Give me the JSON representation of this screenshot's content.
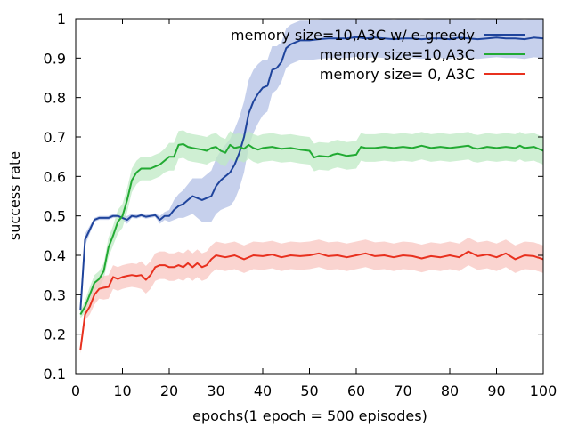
{
  "chart_data": {
    "type": "line",
    "title": "",
    "xlabel": "epochs(1 epoch = 500 episodes)",
    "ylabel": "success rate",
    "xlim": [
      0,
      100
    ],
    "ylim": [
      0.1,
      1.0
    ],
    "xticks": [
      0,
      10,
      20,
      30,
      40,
      50,
      60,
      70,
      80,
      90,
      100
    ],
    "yticks": [
      0.1,
      0.2,
      0.3,
      0.4,
      0.5,
      0.6,
      0.7,
      0.8,
      0.9,
      1.0
    ],
    "xtick_labels": [
      "0",
      "10",
      "20",
      "30",
      "40",
      "50",
      "60",
      "70",
      "80",
      "90",
      "100"
    ],
    "ytick_labels": [
      "0.1",
      "0.2",
      "0.3",
      "0.4",
      "0.5",
      "0.6",
      "0.7",
      "0.8",
      "0.9",
      "1"
    ],
    "grid": false,
    "legend_position": "top-right",
    "series": [
      {
        "name": "memory size=10,A3C w/ e-greedy",
        "color": "#1f449c",
        "band_color": "#b3c0e6",
        "x": [
          1,
          2,
          3,
          4,
          5,
          6,
          7,
          8,
          9,
          10,
          11,
          12,
          13,
          14,
          15,
          16,
          17,
          18,
          19,
          20,
          21,
          22,
          23,
          24,
          25,
          26,
          27,
          28,
          29,
          30,
          31,
          32,
          33,
          34,
          35,
          36,
          37,
          38,
          39,
          40,
          41,
          42,
          43,
          44,
          45,
          46,
          47,
          48,
          49,
          50,
          52,
          54,
          56,
          58,
          60,
          62,
          64,
          66,
          68,
          70,
          72,
          74,
          76,
          78,
          80,
          82,
          84,
          86,
          88,
          90,
          92,
          94,
          96,
          98,
          100
        ],
        "y": [
          0.26,
          0.44,
          0.465,
          0.49,
          0.495,
          0.495,
          0.495,
          0.5,
          0.5,
          0.495,
          0.49,
          0.5,
          0.498,
          0.502,
          0.498,
          0.5,
          0.502,
          0.49,
          0.5,
          0.5,
          0.515,
          0.525,
          0.53,
          0.54,
          0.55,
          0.545,
          0.54,
          0.545,
          0.55,
          0.575,
          0.59,
          0.6,
          0.61,
          0.63,
          0.66,
          0.7,
          0.76,
          0.79,
          0.81,
          0.825,
          0.83,
          0.87,
          0.875,
          0.89,
          0.925,
          0.935,
          0.94,
          0.945,
          0.945,
          0.945,
          0.948,
          0.95,
          0.95,
          0.95,
          0.953,
          0.95,
          0.952,
          0.95,
          0.948,
          0.95,
          0.95,
          0.948,
          0.95,
          0.95,
          0.948,
          0.952,
          0.95,
          0.948,
          0.95,
          0.952,
          0.95,
          0.95,
          0.948,
          0.952,
          0.95
        ],
        "band": [
          0.01,
          0.015,
          0.01,
          0.005,
          0.005,
          0.005,
          0.005,
          0.005,
          0.005,
          0.005,
          0.01,
          0.005,
          0.005,
          0.005,
          0.005,
          0.005,
          0.005,
          0.01,
          0.01,
          0.015,
          0.025,
          0.03,
          0.035,
          0.04,
          0.045,
          0.05,
          0.055,
          0.06,
          0.065,
          0.07,
          0.075,
          0.08,
          0.085,
          0.09,
          0.09,
          0.09,
          0.085,
          0.08,
          0.075,
          0.07,
          0.065,
          0.06,
          0.055,
          0.05,
          0.05,
          0.05,
          0.05,
          0.05,
          0.05,
          0.05,
          0.05,
          0.05,
          0.05,
          0.05,
          0.05,
          0.05,
          0.05,
          0.05,
          0.05,
          0.05,
          0.05,
          0.05,
          0.05,
          0.05,
          0.05,
          0.05,
          0.05,
          0.05,
          0.05,
          0.05,
          0.05,
          0.05,
          0.05,
          0.05,
          0.05
        ]
      },
      {
        "name": "memory size=10,A3C",
        "color": "#22aa33",
        "band_color": "#bfe9c4",
        "x": [
          1,
          2,
          3,
          4,
          5,
          6,
          7,
          8,
          9,
          10,
          11,
          12,
          13,
          14,
          15,
          16,
          17,
          18,
          19,
          20,
          21,
          22,
          23,
          24,
          25,
          26,
          27,
          28,
          29,
          30,
          31,
          32,
          33,
          34,
          35,
          36,
          37,
          38,
          39,
          40,
          42,
          44,
          46,
          48,
          50,
          51,
          52,
          54,
          55,
          56,
          58,
          60,
          61,
          62,
          64,
          66,
          68,
          70,
          72,
          74,
          76,
          78,
          80,
          82,
          84,
          85,
          86,
          88,
          90,
          92,
          94,
          95,
          96,
          98,
          100
        ],
        "y": [
          0.25,
          0.27,
          0.3,
          0.33,
          0.34,
          0.36,
          0.42,
          0.45,
          0.485,
          0.5,
          0.54,
          0.59,
          0.61,
          0.62,
          0.62,
          0.62,
          0.625,
          0.63,
          0.64,
          0.65,
          0.65,
          0.68,
          0.682,
          0.675,
          0.672,
          0.67,
          0.668,
          0.665,
          0.672,
          0.675,
          0.665,
          0.66,
          0.68,
          0.672,
          0.675,
          0.67,
          0.68,
          0.672,
          0.668,
          0.672,
          0.675,
          0.67,
          0.672,
          0.668,
          0.665,
          0.648,
          0.652,
          0.65,
          0.655,
          0.658,
          0.652,
          0.655,
          0.675,
          0.672,
          0.672,
          0.675,
          0.672,
          0.675,
          0.672,
          0.678,
          0.672,
          0.675,
          0.672,
          0.675,
          0.678,
          0.672,
          0.67,
          0.675,
          0.672,
          0.675,
          0.672,
          0.678,
          0.672,
          0.675,
          0.665
        ],
        "band": [
          0.01,
          0.015,
          0.02,
          0.02,
          0.02,
          0.02,
          0.025,
          0.025,
          0.03,
          0.03,
          0.03,
          0.03,
          0.03,
          0.03,
          0.03,
          0.03,
          0.03,
          0.03,
          0.03,
          0.035,
          0.035,
          0.035,
          0.035,
          0.035,
          0.035,
          0.035,
          0.035,
          0.035,
          0.035,
          0.035,
          0.035,
          0.035,
          0.035,
          0.035,
          0.035,
          0.035,
          0.035,
          0.035,
          0.035,
          0.035,
          0.035,
          0.035,
          0.035,
          0.035,
          0.035,
          0.035,
          0.035,
          0.035,
          0.035,
          0.035,
          0.035,
          0.035,
          0.035,
          0.035,
          0.035,
          0.035,
          0.035,
          0.035,
          0.035,
          0.035,
          0.035,
          0.035,
          0.035,
          0.035,
          0.035,
          0.035,
          0.035,
          0.035,
          0.035,
          0.035,
          0.035,
          0.035,
          0.035,
          0.035,
          0.035
        ]
      },
      {
        "name": "memory size= 0, A3C",
        "color": "#e8311f",
        "band_color": "#f8c6c0",
        "x": [
          1,
          2,
          3,
          4,
          5,
          6,
          7,
          8,
          9,
          10,
          11,
          12,
          13,
          14,
          15,
          16,
          17,
          18,
          19,
          20,
          21,
          22,
          23,
          24,
          25,
          26,
          27,
          28,
          29,
          30,
          32,
          34,
          36,
          38,
          40,
          42,
          44,
          46,
          48,
          50,
          52,
          54,
          56,
          58,
          60,
          62,
          64,
          66,
          68,
          70,
          72,
          74,
          76,
          78,
          80,
          82,
          84,
          86,
          88,
          90,
          92,
          94,
          96,
          98,
          100
        ],
        "y": [
          0.16,
          0.25,
          0.27,
          0.3,
          0.315,
          0.318,
          0.32,
          0.345,
          0.34,
          0.345,
          0.348,
          0.35,
          0.348,
          0.35,
          0.338,
          0.35,
          0.37,
          0.375,
          0.375,
          0.37,
          0.37,
          0.375,
          0.37,
          0.38,
          0.37,
          0.38,
          0.37,
          0.375,
          0.39,
          0.4,
          0.395,
          0.4,
          0.39,
          0.4,
          0.398,
          0.402,
          0.395,
          0.4,
          0.398,
          0.4,
          0.405,
          0.398,
          0.4,
          0.395,
          0.4,
          0.405,
          0.398,
          0.4,
          0.395,
          0.4,
          0.398,
          0.392,
          0.398,
          0.395,
          0.4,
          0.395,
          0.41,
          0.398,
          0.402,
          0.395,
          0.405,
          0.39,
          0.4,
          0.398,
          0.39
        ],
        "band": [
          0.01,
          0.015,
          0.02,
          0.025,
          0.025,
          0.03,
          0.03,
          0.03,
          0.03,
          0.03,
          0.03,
          0.03,
          0.03,
          0.035,
          0.035,
          0.035,
          0.035,
          0.035,
          0.035,
          0.035,
          0.035,
          0.035,
          0.035,
          0.035,
          0.035,
          0.035,
          0.035,
          0.035,
          0.035,
          0.035,
          0.035,
          0.035,
          0.035,
          0.035,
          0.035,
          0.035,
          0.035,
          0.035,
          0.035,
          0.035,
          0.035,
          0.035,
          0.035,
          0.035,
          0.035,
          0.035,
          0.035,
          0.035,
          0.035,
          0.035,
          0.035,
          0.035,
          0.035,
          0.035,
          0.035,
          0.035,
          0.035,
          0.035,
          0.035,
          0.035,
          0.035,
          0.035,
          0.035,
          0.035,
          0.035
        ]
      }
    ]
  }
}
